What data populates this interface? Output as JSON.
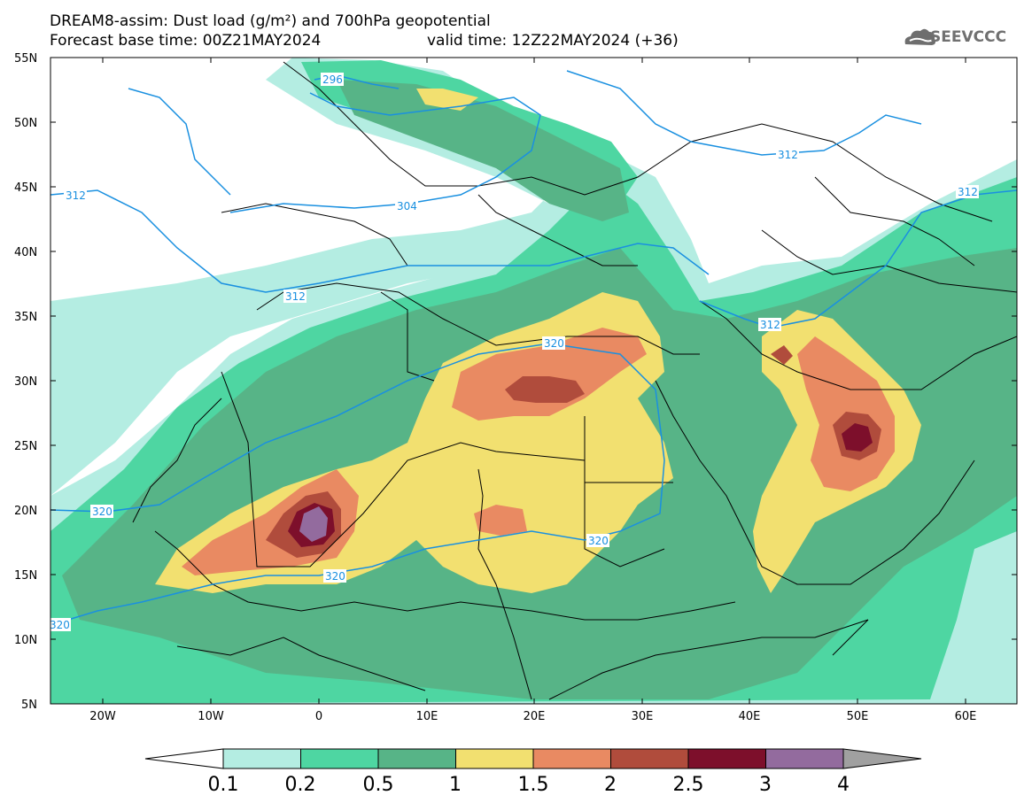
{
  "header": {
    "title_line1": "DREAM8-assim: Dust load (g/m²) and 700hPa geopotential",
    "title_line2": "Forecast base time: 00Z21MAY2024",
    "valid_time": "valid time: 12Z22MAY2024 (+36)",
    "logo_text": "SEEVCCC",
    "logo_icon": "cloud-logo-icon"
  },
  "map": {
    "lat_labels": [
      "55N",
      "50N",
      "45N",
      "40N",
      "35N",
      "30N",
      "25N",
      "20N",
      "15N",
      "10N",
      "5N"
    ],
    "lon_labels": [
      "20W",
      "10W",
      "0",
      "10E",
      "20E",
      "30E",
      "40E",
      "50E",
      "60E"
    ],
    "contour_labels": [
      "296",
      "304",
      "312",
      "312",
      "312",
      "312",
      "312",
      "320",
      "320",
      "320",
      "320",
      "320"
    ],
    "colors": {
      "land_bg": "#ffffff",
      "border": "#000000",
      "contour": "#1a90e0"
    }
  },
  "colorbar": {
    "labels": [
      "0.1",
      "0.2",
      "0.5",
      "1",
      "1.5",
      "2",
      "2.5",
      "3",
      "4"
    ],
    "colors": [
      "#b4ede2",
      "#4ed6a2",
      "#57b487",
      "#f2e070",
      "#e98a62",
      "#b04c3c",
      "#7d0f2b",
      "#936b9e"
    ],
    "low_extend_color": "#ffffff",
    "high_extend_color": "#a0a0a0"
  }
}
